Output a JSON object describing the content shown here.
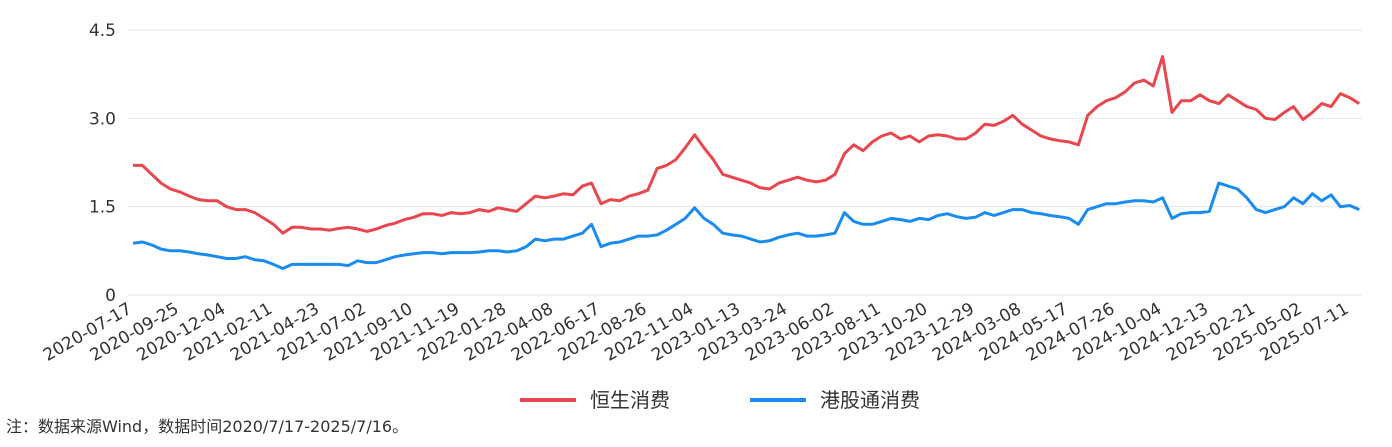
{
  "chart_data": {
    "type": "line",
    "categories": [
      "2020-07-17",
      null,
      null,
      null,
      null,
      "2020-09-25",
      null,
      null,
      null,
      null,
      "2020-12-04",
      null,
      null,
      null,
      null,
      "2021-02-11",
      null,
      null,
      null,
      null,
      "2021-04-23",
      null,
      null,
      null,
      null,
      "2021-07-02",
      null,
      null,
      null,
      null,
      "2021-09-10",
      null,
      null,
      null,
      null,
      "2021-11-19",
      null,
      null,
      null,
      null,
      "2022-01-28",
      null,
      null,
      null,
      null,
      "2022-04-08",
      null,
      null,
      null,
      null,
      "2022-06-17",
      null,
      null,
      null,
      null,
      "2022-08-26",
      null,
      null,
      null,
      null,
      "2022-11-04",
      null,
      null,
      null,
      null,
      "2023-01-13",
      null,
      null,
      null,
      null,
      "2023-03-24",
      null,
      null,
      null,
      null,
      "2023-06-02",
      null,
      null,
      null,
      null,
      "2023-08-11",
      null,
      null,
      null,
      null,
      "2023-10-20",
      null,
      null,
      null,
      null,
      "2023-12-29",
      null,
      null,
      null,
      null,
      "2024-03-08",
      null,
      null,
      null,
      null,
      "2024-05-17",
      null,
      null,
      null,
      null,
      "2024-07-26",
      null,
      null,
      null,
      null,
      "2024-10-04",
      null,
      null,
      null,
      null,
      "2024-12-13",
      null,
      null,
      null,
      null,
      "2025-02-21",
      null,
      null,
      null,
      null,
      "2025-05-02",
      null,
      null,
      null,
      null,
      "2025-07-11",
      null
    ],
    "series": [
      {
        "name": "恒生消费",
        "color": "#e8474e",
        "values": [
          2.2,
          2.2,
          2.05,
          1.9,
          1.8,
          1.75,
          1.68,
          1.62,
          1.6,
          1.6,
          1.5,
          1.45,
          1.45,
          1.4,
          1.3,
          1.2,
          1.05,
          1.15,
          1.15,
          1.12,
          1.12,
          1.1,
          1.13,
          1.15,
          1.12,
          1.08,
          1.12,
          1.18,
          1.22,
          1.28,
          1.32,
          1.38,
          1.38,
          1.35,
          1.4,
          1.38,
          1.4,
          1.45,
          1.42,
          1.48,
          1.45,
          1.42,
          1.55,
          1.68,
          1.65,
          1.68,
          1.72,
          1.7,
          1.85,
          1.9,
          1.55,
          1.62,
          1.6,
          1.68,
          1.72,
          1.78,
          2.15,
          2.2,
          2.3,
          2.5,
          2.72,
          2.5,
          2.3,
          2.05,
          2.0,
          1.95,
          1.9,
          1.82,
          1.8,
          1.9,
          1.95,
          2.0,
          1.95,
          1.92,
          1.95,
          2.05,
          2.4,
          2.55,
          2.45,
          2.6,
          2.7,
          2.75,
          2.65,
          2.7,
          2.6,
          2.7,
          2.72,
          2.7,
          2.65,
          2.65,
          2.75,
          2.9,
          2.88,
          2.95,
          3.05,
          2.9,
          2.8,
          2.7,
          2.65,
          2.62,
          2.6,
          2.55,
          3.05,
          3.2,
          3.3,
          3.35,
          3.45,
          3.6,
          3.65,
          3.55,
          4.05,
          3.1,
          3.3,
          3.3,
          3.4,
          3.3,
          3.25,
          3.4,
          3.3,
          3.2,
          3.15,
          3.0,
          2.98,
          3.1,
          3.2,
          2.98,
          3.1,
          3.25,
          3.2,
          3.42,
          3.35,
          3.25
        ]
      },
      {
        "name": "港股通消费",
        "color": "#1a8cf0",
        "values": [
          0.88,
          0.9,
          0.85,
          0.78,
          0.75,
          0.75,
          0.73,
          0.7,
          0.68,
          0.65,
          0.62,
          0.62,
          0.65,
          0.6,
          0.58,
          0.52,
          0.45,
          0.52,
          0.52,
          0.52,
          0.52,
          0.52,
          0.52,
          0.5,
          0.58,
          0.55,
          0.55,
          0.6,
          0.65,
          0.68,
          0.7,
          0.72,
          0.72,
          0.7,
          0.72,
          0.72,
          0.72,
          0.73,
          0.75,
          0.75,
          0.73,
          0.75,
          0.82,
          0.95,
          0.92,
          0.95,
          0.95,
          1.0,
          1.05,
          1.2,
          0.82,
          0.88,
          0.9,
          0.95,
          1.0,
          1.0,
          1.02,
          1.1,
          1.2,
          1.3,
          1.48,
          1.3,
          1.2,
          1.05,
          1.02,
          1.0,
          0.95,
          0.9,
          0.92,
          0.98,
          1.02,
          1.05,
          1.0,
          1.0,
          1.02,
          1.05,
          1.4,
          1.25,
          1.2,
          1.2,
          1.25,
          1.3,
          1.28,
          1.25,
          1.3,
          1.28,
          1.35,
          1.38,
          1.33,
          1.3,
          1.32,
          1.4,
          1.35,
          1.4,
          1.45,
          1.45,
          1.4,
          1.38,
          1.35,
          1.33,
          1.3,
          1.2,
          1.45,
          1.5,
          1.55,
          1.55,
          1.58,
          1.6,
          1.6,
          1.58,
          1.65,
          1.3,
          1.38,
          1.4,
          1.4,
          1.42,
          1.9,
          1.85,
          1.8,
          1.65,
          1.45,
          1.4,
          1.45,
          1.5,
          1.65,
          1.55,
          1.72,
          1.6,
          1.7,
          1.5,
          1.52,
          1.45
        ]
      }
    ],
    "ylim": [
      0,
      4.5
    ],
    "yticks": [
      0,
      1.5,
      {
        "value": 3,
        "label": "3.0"
      },
      4.5
    ],
    "grid": true,
    "note": "注：数据来源Wind，数据时间2020/7/17-2025/7/16。"
  }
}
